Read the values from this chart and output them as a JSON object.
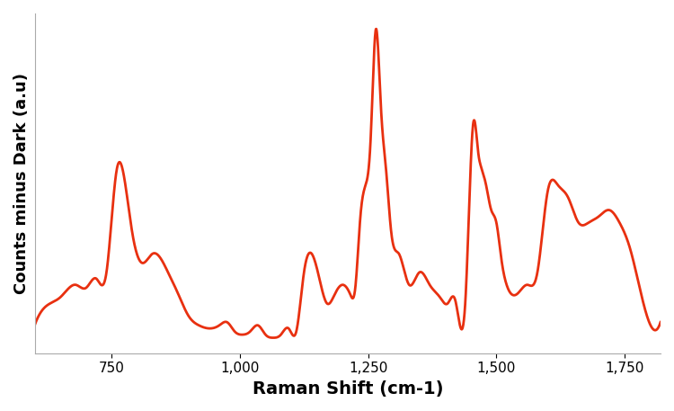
{
  "line_color": "#E83010",
  "line_width": 2.0,
  "xlabel": "Raman Shift (cm-1)",
  "ylabel": "Counts minus Dark (a.u)",
  "xlabel_fontsize": 14,
  "ylabel_fontsize": 13,
  "xlabel_fontweight": "bold",
  "ylabel_fontweight": "bold",
  "xlim": [
    600,
    1820
  ],
  "ylim_auto": true,
  "xticks": [
    750,
    1000,
    1250,
    1500,
    1750
  ],
  "xtick_labels": [
    "750",
    "1,000",
    "1,250",
    "1,500",
    "1,750"
  ],
  "background_color": "#ffffff",
  "spine_color": "#aaaaaa",
  "tick_fontsize": 11,
  "keypoints_x": [
    600,
    630,
    650,
    680,
    700,
    720,
    740,
    760,
    775,
    790,
    810,
    830,
    860,
    880,
    900,
    920,
    940,
    960,
    975,
    990,
    1005,
    1020,
    1035,
    1050,
    1065,
    1080,
    1095,
    1110,
    1125,
    1140,
    1155,
    1170,
    1185,
    1200,
    1215,
    1225,
    1235,
    1245,
    1255,
    1265,
    1275,
    1285,
    1295,
    1310,
    1330,
    1350,
    1370,
    1390,
    1405,
    1420,
    1440,
    1455,
    1465,
    1470,
    1480,
    1490,
    1500,
    1510,
    1520,
    1540,
    1560,
    1580,
    1600,
    1620,
    1640,
    1660,
    1680,
    1700,
    1720,
    1740,
    1760,
    1790,
    1820
  ],
  "keypoints_y": [
    0.05,
    0.12,
    0.14,
    0.18,
    0.17,
    0.2,
    0.22,
    0.55,
    0.52,
    0.35,
    0.25,
    0.28,
    0.22,
    0.15,
    0.08,
    0.05,
    0.04,
    0.05,
    0.06,
    0.03,
    0.02,
    0.03,
    0.05,
    0.02,
    0.01,
    0.02,
    0.04,
    0.03,
    0.22,
    0.28,
    0.2,
    0.12,
    0.15,
    0.18,
    0.15,
    0.17,
    0.4,
    0.5,
    0.65,
    1.0,
    0.75,
    0.55,
    0.35,
    0.28,
    0.18,
    0.22,
    0.18,
    0.14,
    0.12,
    0.13,
    0.14,
    0.7,
    0.6,
    0.56,
    0.5,
    0.42,
    0.38,
    0.26,
    0.18,
    0.15,
    0.18,
    0.22,
    0.48,
    0.5,
    0.46,
    0.38,
    0.38,
    0.4,
    0.42,
    0.38,
    0.3,
    0.1,
    0.06
  ]
}
